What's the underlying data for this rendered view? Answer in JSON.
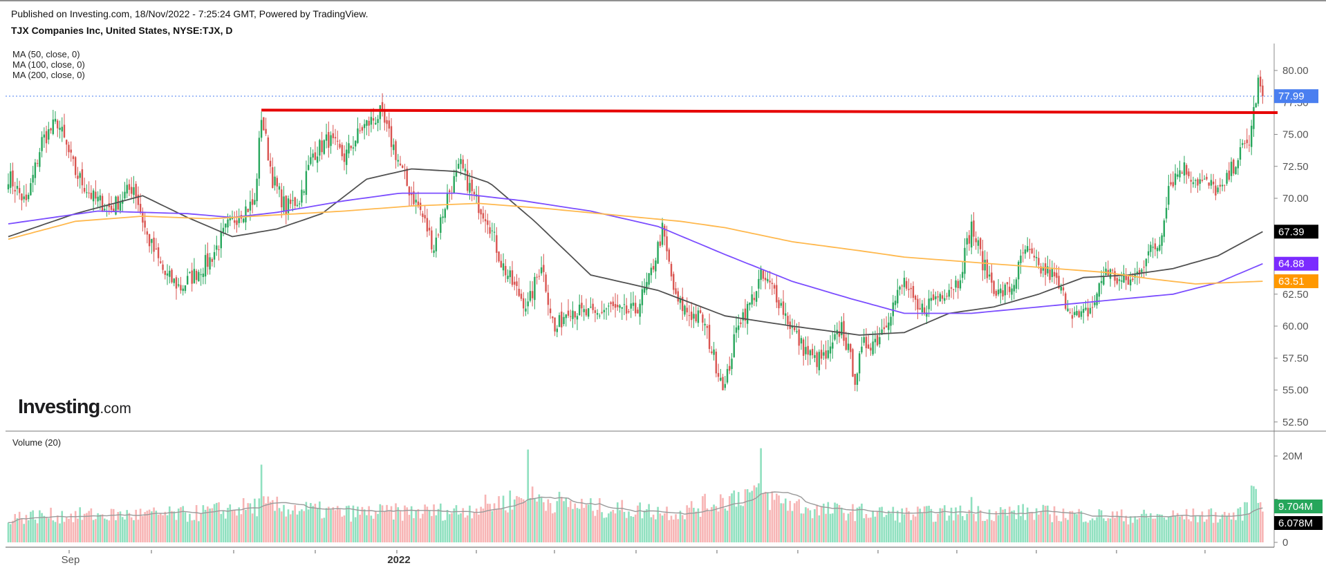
{
  "header": {
    "published": "Published on Investing.com, 18/Nov/2022 - 7:25:24 GMT, Powered by TradingView.",
    "symbol": "TJX Companies Inc, United States, NYSE:TJX, D"
  },
  "indicators": [
    "MA (50, close, 0)",
    "MA (100, close, 0)",
    "MA (200, close, 0)"
  ],
  "volume_label": "Volume (20)",
  "logo": {
    "brand": "Investing",
    "suffix": ".com"
  },
  "colors": {
    "up": "#26a65b",
    "down": "#d9534f",
    "vol_up": "#8fe0bf",
    "vol_down": "#f7b4b4",
    "ma50": "#505050",
    "ma100": "#7b4dff",
    "ma200": "#ffb84d",
    "resistance": "#e60000",
    "price_tag": "#4a7ff0",
    "grid": "#e6e6e6",
    "axis_text": "#555555"
  },
  "chart_data": [
    {
      "type": "candlestick",
      "title": "TJX Companies Inc, United States, NYSE:TJX, D",
      "y_ticks": [
        52.5,
        55.0,
        57.5,
        60.0,
        62.5,
        65.0,
        67.5,
        70.0,
        72.5,
        75.0,
        77.5,
        80.0
      ],
      "y_tick_labels": [
        "52.50",
        "55.00",
        "57.50",
        "60.00",
        "62.50",
        "65.00",
        "67.50",
        "70.00",
        "72.50",
        "75.00",
        "77.50",
        "80.00"
      ],
      "ylim": [
        52.0,
        82.5
      ],
      "x_labels": [
        "Sep",
        "2022"
      ],
      "price_keypoints": [
        [
          0,
          71.8
        ],
        [
          8,
          69.5
        ],
        [
          15,
          74.5
        ],
        [
          22,
          76.0
        ],
        [
          30,
          72.0
        ],
        [
          38,
          70.0
        ],
        [
          46,
          69.2
        ],
        [
          56,
          71.0
        ],
        [
          62,
          67.0
        ],
        [
          70,
          64.0
        ],
        [
          77,
          63.0
        ],
        [
          84,
          64.2
        ],
        [
          90,
          65.2
        ],
        [
          98,
          67.8
        ],
        [
          104,
          69.0
        ],
        [
          110,
          69.6
        ],
        [
          113,
          76.5
        ],
        [
          118,
          71.5
        ],
        [
          124,
          69.2
        ],
        [
          130,
          70.0
        ],
        [
          136,
          73.5
        ],
        [
          143,
          74.6
        ],
        [
          150,
          73.2
        ],
        [
          158,
          75.5
        ],
        [
          166,
          76.6
        ],
        [
          172,
          74.0
        ],
        [
          178,
          71.0
        ],
        [
          184,
          69.0
        ],
        [
          190,
          66.2
        ],
        [
          196,
          70.2
        ],
        [
          202,
          72.5
        ],
        [
          208,
          70.0
        ],
        [
          214,
          68.5
        ],
        [
          220,
          65.0
        ],
        [
          226,
          63.0
        ],
        [
          232,
          61.5
        ],
        [
          238,
          65.0
        ],
        [
          244,
          59.5
        ],
        [
          250,
          61.5
        ],
        [
          256,
          61.0
        ],
        [
          262,
          60.8
        ],
        [
          268,
          61.5
        ],
        [
          274,
          61.0
        ],
        [
          280,
          61.2
        ],
        [
          286,
          63.5
        ],
        [
          292,
          67.5
        ],
        [
          298,
          62.0
        ],
        [
          304,
          61.0
        ],
        [
          310,
          60.5
        ],
        [
          316,
          57.0
        ],
        [
          320,
          55.2
        ],
        [
          326,
          60.5
        ],
        [
          330,
          61.3
        ],
        [
          336,
          63.8
        ],
        [
          342,
          62.8
        ],
        [
          348,
          60.5
        ],
        [
          354,
          58.5
        ],
        [
          360,
          57.3
        ],
        [
          366,
          57.6
        ],
        [
          372,
          60.0
        ],
        [
          378,
          56.0
        ],
        [
          382,
          58.5
        ],
        [
          388,
          59.0
        ],
        [
          394,
          61.3
        ],
        [
          400,
          63.5
        ],
        [
          406,
          61.0
        ],
        [
          412,
          62.0
        ],
        [
          418,
          62.8
        ],
        [
          424,
          63.5
        ],
        [
          430,
          67.8
        ],
        [
          436,
          64.5
        ],
        [
          442,
          62.5
        ],
        [
          448,
          63.0
        ],
        [
          454,
          66.0
        ],
        [
          460,
          64.5
        ],
        [
          466,
          64.0
        ],
        [
          472,
          62.0
        ],
        [
          478,
          60.5
        ],
        [
          484,
          61.5
        ],
        [
          490,
          64.5
        ],
        [
          496,
          63.5
        ],
        [
          502,
          63.5
        ],
        [
          508,
          65.5
        ],
        [
          514,
          66.5
        ],
        [
          518,
          71.0
        ],
        [
          524,
          72.5
        ],
        [
          530,
          71.5
        ],
        [
          536,
          71.0
        ],
        [
          542,
          70.5
        ],
        [
          548,
          73.0
        ],
        [
          554,
          74.5
        ],
        [
          558,
          79.0
        ],
        [
          560,
          77.99
        ]
      ],
      "ma_keypoints": {
        "MA 50": [
          [
            0,
            67.0
          ],
          [
            30,
            68.8
          ],
          [
            60,
            70.2
          ],
          [
            80,
            68.5
          ],
          [
            100,
            67.0
          ],
          [
            120,
            67.6
          ],
          [
            140,
            68.8
          ],
          [
            160,
            71.5
          ],
          [
            180,
            72.3
          ],
          [
            200,
            72.1
          ],
          [
            215,
            71.2
          ],
          [
            235,
            68.2
          ],
          [
            260,
            64.0
          ],
          [
            290,
            62.8
          ],
          [
            320,
            60.8
          ],
          [
            350,
            60.0
          ],
          [
            380,
            59.3
          ],
          [
            400,
            59.5
          ],
          [
            420,
            61.0
          ],
          [
            440,
            61.5
          ],
          [
            460,
            62.5
          ],
          [
            480,
            63.8
          ],
          [
            500,
            64.0
          ],
          [
            520,
            64.5
          ],
          [
            540,
            65.5
          ],
          [
            560,
            67.39
          ]
        ],
        "MA 100": [
          [
            0,
            68.0
          ],
          [
            40,
            69.0
          ],
          [
            80,
            68.8
          ],
          [
            100,
            68.5
          ],
          [
            120,
            68.9
          ],
          [
            150,
            69.8
          ],
          [
            175,
            70.4
          ],
          [
            200,
            70.4
          ],
          [
            230,
            69.8
          ],
          [
            260,
            69.0
          ],
          [
            290,
            67.8
          ],
          [
            320,
            65.6
          ],
          [
            350,
            63.5
          ],
          [
            375,
            62.2
          ],
          [
            400,
            61.0
          ],
          [
            430,
            61.0
          ],
          [
            460,
            61.5
          ],
          [
            490,
            62.0
          ],
          [
            520,
            62.5
          ],
          [
            540,
            63.4
          ],
          [
            560,
            64.88
          ]
        ],
        "MA 200": [
          [
            0,
            66.8
          ],
          [
            30,
            68.2
          ],
          [
            60,
            68.6
          ],
          [
            90,
            68.4
          ],
          [
            120,
            68.7
          ],
          [
            150,
            69.0
          ],
          [
            180,
            69.4
          ],
          [
            210,
            69.6
          ],
          [
            240,
            69.2
          ],
          [
            270,
            68.7
          ],
          [
            300,
            68.2
          ],
          [
            320,
            67.7
          ],
          [
            350,
            66.6
          ],
          [
            380,
            65.9
          ],
          [
            400,
            65.4
          ],
          [
            430,
            65.0
          ],
          [
            460,
            64.6
          ],
          [
            490,
            64.2
          ],
          [
            510,
            63.7
          ],
          [
            530,
            63.3
          ],
          [
            560,
            63.51
          ]
        ]
      },
      "resistance_line": {
        "x": [
          113,
          560
        ],
        "y": [
          76.9,
          76.7
        ]
      },
      "last_price_label": "77.99",
      "value_tags": [
        {
          "series": "MA 50",
          "value": "67.39",
          "color": "#000000"
        },
        {
          "series": "MA 100",
          "value": "64.88",
          "color": "#7b2bff"
        },
        {
          "series": "MA 200",
          "value": "63.51",
          "color": "#ff9800"
        },
        {
          "series": "Last price",
          "value": "77.99",
          "color": "#4a7ff0"
        }
      ]
    },
    {
      "type": "bar",
      "title": "Volume (20)",
      "y_ticks": [
        0,
        10000000,
        20000000
      ],
      "y_tick_labels": [
        "0",
        "",
        "20M"
      ],
      "ylim": [
        0,
        23500000
      ],
      "volume_keypoints": [
        [
          0,
          5800000
        ],
        [
          20,
          6200000
        ],
        [
          80,
          6500000
        ],
        [
          113,
          8500000
        ],
        [
          150,
          6800000
        ],
        [
          200,
          7200000
        ],
        [
          232,
          10500000
        ],
        [
          260,
          8000000
        ],
        [
          300,
          7000000
        ],
        [
          330,
          11500000
        ],
        [
          360,
          7500000
        ],
        [
          400,
          6500000
        ],
        [
          450,
          7000000
        ],
        [
          500,
          5900000
        ],
        [
          550,
          6300000
        ],
        [
          556,
          11000000
        ],
        [
          560,
          9704000
        ]
      ],
      "volume_spikes": {
        "113": 18000000,
        "232": 21500000,
        "336": 21800000,
        "430": 10500000,
        "556": 13000000
      },
      "value_tags": [
        {
          "series": "Volume",
          "value": "9.704M",
          "color": "#26a65b"
        },
        {
          "series": "Volume MA",
          "value": "6.078M",
          "color": "#000000"
        }
      ]
    }
  ]
}
